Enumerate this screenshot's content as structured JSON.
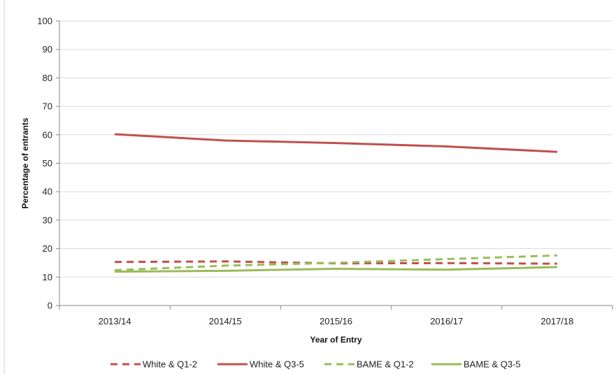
{
  "chart_data": {
    "type": "line",
    "title": "",
    "xlabel": "Year of Entry",
    "ylabel": "Percentage of entrants",
    "categories": [
      "2013/14",
      "2014/15",
      "2015/16",
      "2016/17",
      "2017/18"
    ],
    "ylim": [
      0,
      100
    ],
    "yticks": [
      0,
      10,
      20,
      30,
      40,
      50,
      60,
      70,
      80,
      90,
      100
    ],
    "grid": true,
    "legend_position": "bottom",
    "series": [
      {
        "name": "White & Q1-2",
        "values": [
          15.3,
          15.5,
          14.8,
          14.9,
          14.7
        ],
        "color": "#c0504d",
        "dash": true
      },
      {
        "name": "White & Q3-5",
        "values": [
          60.2,
          58.0,
          57.1,
          55.9,
          54.0
        ],
        "color": "#c0504d",
        "dash": false
      },
      {
        "name": "BAME & Q1-2",
        "values": [
          12.4,
          14.0,
          15.0,
          16.3,
          17.6
        ],
        "color": "#9bbb59",
        "dash": true
      },
      {
        "name": "BAME & Q3-5",
        "values": [
          11.9,
          12.2,
          12.9,
          12.6,
          13.5
        ],
        "color": "#9bbb59",
        "dash": false
      }
    ]
  }
}
